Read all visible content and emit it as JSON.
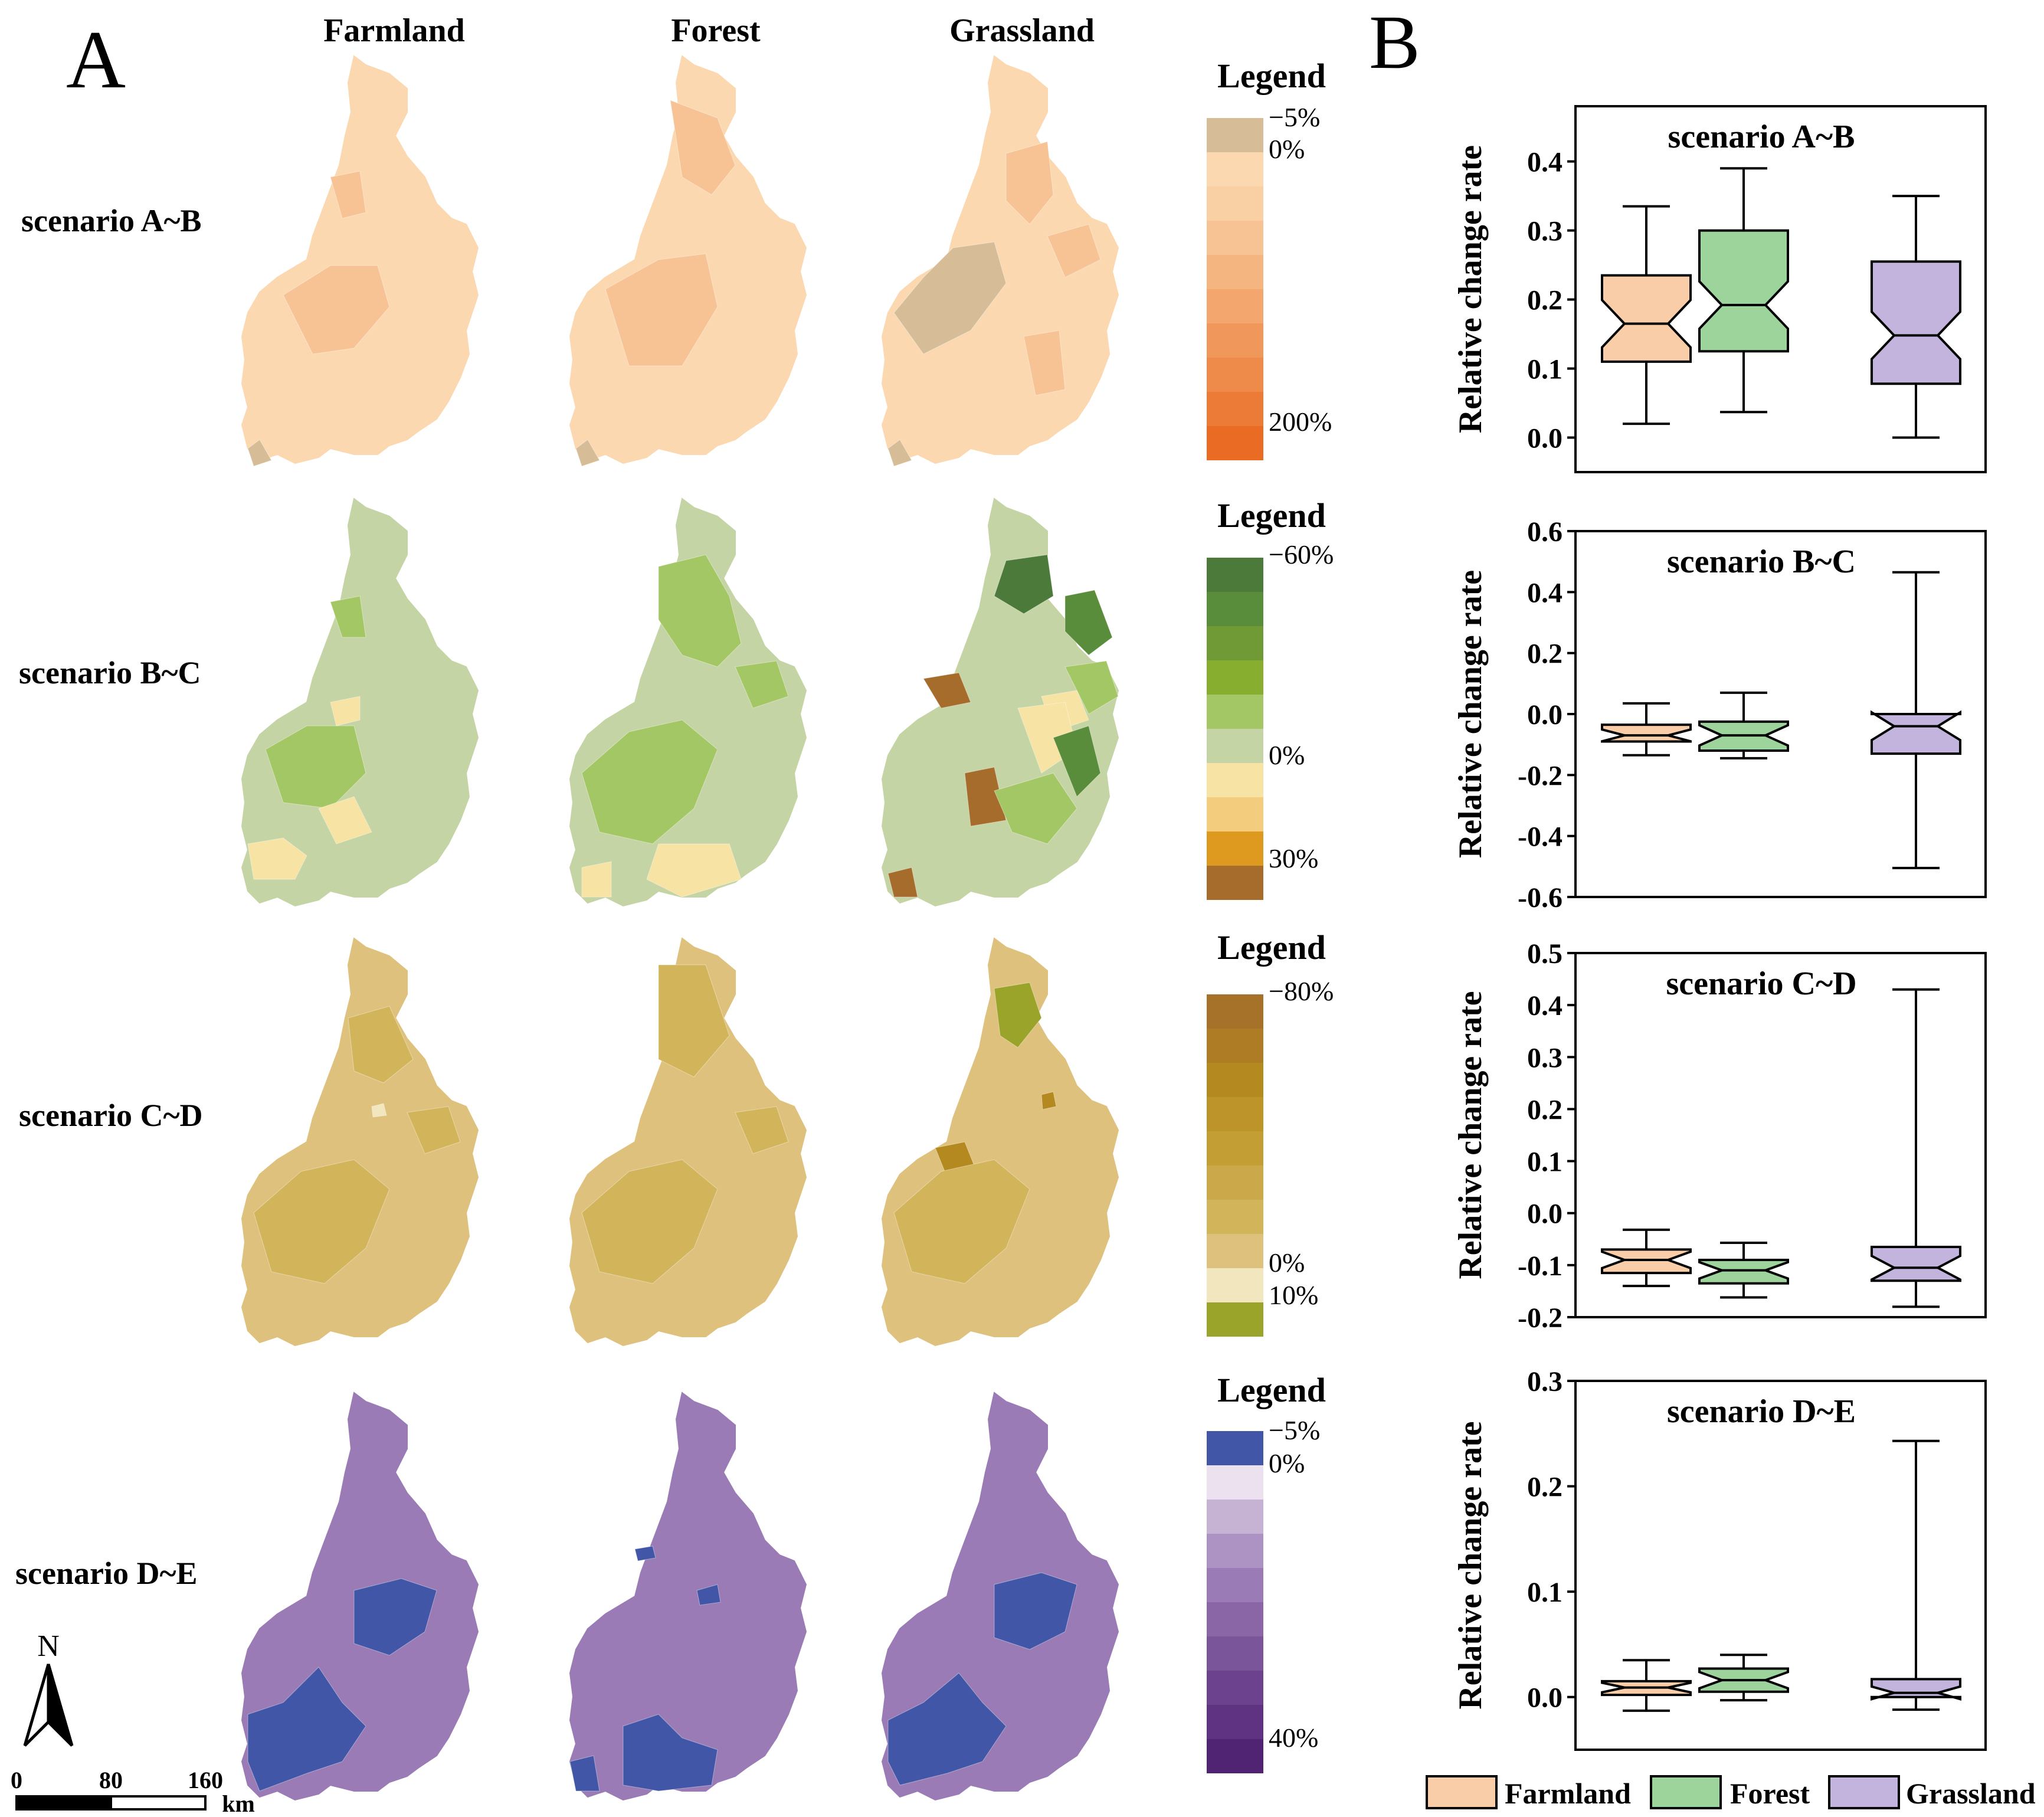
{
  "panel_a": {
    "label": "A",
    "columns": [
      "Farmland",
      "Forest",
      "Grassland"
    ],
    "row_labels": [
      "scenario A~B",
      "scenario B~C",
      "scenario C~D",
      "scenario D~E"
    ],
    "legends": [
      {
        "title": "Legend",
        "labels": [
          "−5%",
          "0%",
          "200%"
        ],
        "colors": [
          "#d6bd98",
          "#fbd8b0",
          "#f9cfa4",
          "#f7c394",
          "#f5b581",
          "#f3a76e",
          "#f0985c",
          "#ee8a4a",
          "#ec7b38",
          "#e96b24"
        ]
      },
      {
        "title": "Legend",
        "labels": [
          "−60%",
          "0%",
          "30%"
        ],
        "colors": [
          "#4b7a3b",
          "#598c3b",
          "#6f9a35",
          "#88ae30",
          "#a4c766",
          "#c5d4a5",
          "#f7e3a4",
          "#f4cc7d",
          "#dd9a1e",
          "#a66c2c"
        ]
      },
      {
        "title": "Legend",
        "labels": [
          "−80%",
          "0%",
          "10%"
        ],
        "colors": [
          "#a67128",
          "#ad7c24",
          "#b4891f",
          "#bd9429",
          "#c39e35",
          "#cba84a",
          "#d2b45b",
          "#dec17c",
          "#f1e6be",
          "#9aa42a"
        ]
      },
      {
        "title": "Legend",
        "labels": [
          "−5%",
          "0%",
          "40%"
        ],
        "colors": [
          "#4156a6",
          "#ece1ee",
          "#c6b3d3",
          "#ac93c4",
          "#9a7bb5",
          "#8a66a6",
          "#7b559a",
          "#6c428e",
          "#5f3382",
          "#512473"
        ]
      }
    ],
    "map_fill_colors": {
      "A_B": {
        "base": "#fbd8b0",
        "patch": "#f7c394",
        "low": "#d6bd98"
      },
      "B_C": {
        "base": "#c5d4a5",
        "patch": "#a4c766",
        "yellow": "#f7e3a4",
        "dark": "#598c3b",
        "darker": "#4b7a3b",
        "brown": "#a66c2c"
      },
      "C_D": {
        "base": "#dec17c",
        "patch": "#d2b45b",
        "olive": "#9aa42a",
        "brown": "#b4891f",
        "pale": "#f1e6be"
      },
      "D_E": {
        "base": "#9a7bb5",
        "blue": "#4156a6"
      }
    },
    "north_label": "N",
    "scale": {
      "ticks": [
        "0",
        "80",
        "160"
      ],
      "unit": "km"
    }
  },
  "panel_b": {
    "label": "B",
    "legend": [
      "Farmland",
      "Forest",
      "Grassland"
    ],
    "colors": {
      "Farmland": "#f9cda7",
      "Forest": "#9cd49c",
      "Grassland": "#c2b4dc"
    }
  },
  "chart_data": [
    {
      "type": "box",
      "title": "scenario A~B",
      "ylabel": "Relative change rate",
      "categories": [
        "Farmland",
        "Forest",
        "Grassland"
      ],
      "ylim": [
        -0.05,
        0.48
      ],
      "yticks": [
        0.0,
        0.1,
        0.2,
        0.3,
        0.4
      ],
      "yticklabels": [
        "0.0",
        "0.1",
        "0.2",
        "0.3",
        "0.4"
      ],
      "series": [
        {
          "name": "Farmland",
          "min": 0.02,
          "q1": 0.11,
          "median": 0.165,
          "q3": 0.235,
          "max": 0.335
        },
        {
          "name": "Forest",
          "min": 0.037,
          "q1": 0.125,
          "median": 0.192,
          "q3": 0.3,
          "max": 0.39
        },
        {
          "name": "Grassland",
          "min": 0.0,
          "q1": 0.078,
          "median": 0.148,
          "q3": 0.255,
          "max": 0.35
        }
      ]
    },
    {
      "type": "box",
      "title": "scenario B~C",
      "ylabel": "Relative change rate",
      "categories": [
        "Farmland",
        "Forest",
        "Grassland"
      ],
      "ylim": [
        -0.6,
        0.6
      ],
      "yticks": [
        -0.6,
        -0.4,
        -0.2,
        0.0,
        0.2,
        0.4,
        0.6
      ],
      "yticklabels": [
        "-0.6",
        "-0.4",
        "-0.2",
        "0.0",
        "0.2",
        "0.4",
        "0.6"
      ],
      "series": [
        {
          "name": "Farmland",
          "min": -0.135,
          "q1": -0.09,
          "median": -0.07,
          "q3": -0.035,
          "max": 0.035
        },
        {
          "name": "Forest",
          "min": -0.145,
          "q1": -0.12,
          "median": -0.07,
          "q3": -0.025,
          "max": 0.07
        },
        {
          "name": "Grassland",
          "min": -0.505,
          "q1": -0.13,
          "median": -0.04,
          "q3": 0.0,
          "max": 0.465
        }
      ]
    },
    {
      "type": "box",
      "title": "scenario C~D",
      "ylabel": "Relative change rate",
      "categories": [
        "Farmland",
        "Forest",
        "Grassland"
      ],
      "ylim": [
        -0.2,
        0.5
      ],
      "yticks": [
        -0.2,
        -0.1,
        0.0,
        0.1,
        0.2,
        0.3,
        0.4,
        0.5
      ],
      "yticklabels": [
        "-0.2",
        "-0.1",
        "0.0",
        "0.1",
        "0.2",
        "0.3",
        "0.4",
        "0.5"
      ],
      "series": [
        {
          "name": "Farmland",
          "min": -0.14,
          "q1": -0.115,
          "median": -0.09,
          "q3": -0.07,
          "max": -0.032
        },
        {
          "name": "Forest",
          "min": -0.162,
          "q1": -0.135,
          "median": -0.11,
          "q3": -0.09,
          "max": -0.057
        },
        {
          "name": "Grassland",
          "min": -0.18,
          "q1": -0.13,
          "median": -0.105,
          "q3": -0.065,
          "max": 0.43
        }
      ]
    },
    {
      "type": "box",
      "title": "scenario D~E",
      "ylabel": "Relative change rate",
      "categories": [
        "Farmland",
        "Forest",
        "Grassland"
      ],
      "ylim": [
        -0.05,
        0.3
      ],
      "yticks": [
        0.0,
        0.1,
        0.2,
        0.3
      ],
      "yticklabels": [
        "0.0",
        "0.1",
        "0.2",
        "0.3"
      ],
      "series": [
        {
          "name": "Farmland",
          "min": -0.013,
          "q1": 0.002,
          "median": 0.009,
          "q3": 0.015,
          "max": 0.035
        },
        {
          "name": "Forest",
          "min": -0.003,
          "q1": 0.005,
          "median": 0.016,
          "q3": 0.027,
          "max": 0.04
        },
        {
          "name": "Grassland",
          "min": -0.012,
          "q1": 0.0,
          "median": 0.004,
          "q3": 0.017,
          "max": 0.243
        }
      ]
    }
  ]
}
